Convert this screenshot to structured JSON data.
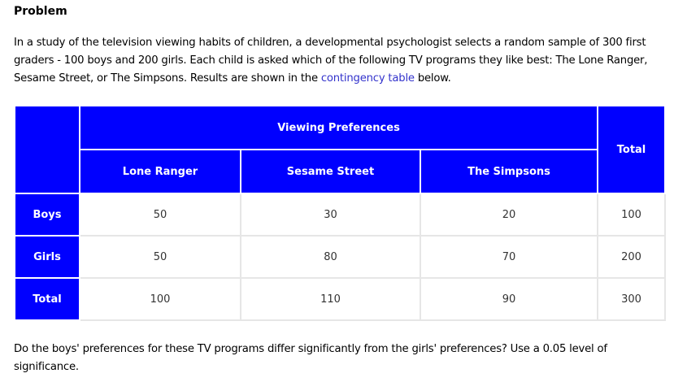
{
  "heading": "Problem",
  "intro": {
    "before_link": "In a study of the television viewing habits of children, a developmental psychologist selects a random sample of 300 first graders - 100 boys and 200 girls. Each child is asked which of the following TV programs they like best: The Lone Ranger, Sesame Street, or The Simpsons. Results are shown in the ",
    "link_text": "contingency table",
    "after_link": " below."
  },
  "table": {
    "group_header": "Viewing Preferences",
    "total_header": "Total",
    "columns": [
      "Lone Ranger",
      "Sesame Street",
      "The Simpsons"
    ],
    "rows": [
      {
        "label": "Boys",
        "values": [
          "50",
          "30",
          "20"
        ],
        "total": "100"
      },
      {
        "label": "Girls",
        "values": [
          "50",
          "80",
          "70"
        ],
        "total": "200"
      },
      {
        "label": "Total",
        "values": [
          "100",
          "110",
          "90"
        ],
        "total": "300"
      }
    ]
  },
  "question": "Do the boys' preferences for these TV programs differ significantly from the girls' preferences? Use a 0.05 level of significance.",
  "colors": {
    "header_bg": "#0000ff",
    "header_text": "#ffffff",
    "link": "#3333cc"
  }
}
